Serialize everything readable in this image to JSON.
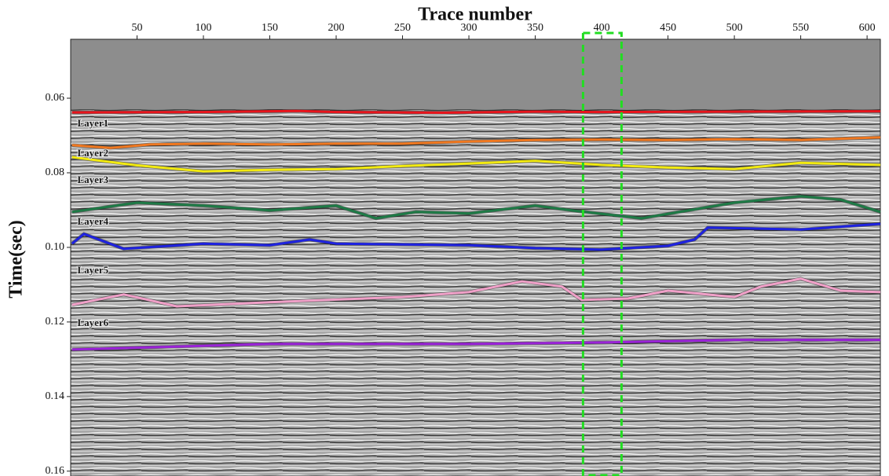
{
  "chart_data": {
    "type": "line",
    "title": "Trace number",
    "y_label": "Time(sec)",
    "xlim": [
      0,
      610
    ],
    "ylim": [
      0.0442,
      0.1613
    ],
    "y_inverted": true,
    "x_axis_position": "top",
    "xticks": [
      50,
      100,
      150,
      200,
      250,
      300,
      350,
      400,
      450,
      500,
      550,
      600
    ],
    "yticks": [
      0.06,
      0.08,
      {
        "value": 0.1,
        "label": "0.10"
      },
      0.12,
      0.14,
      0.16
    ],
    "highlight_x": [
      386,
      415
    ],
    "highlight_color": "#22dd22",
    "series": [
      {
        "color": "#e8141c",
        "x": [
          1,
          100,
          170,
          200,
          280,
          350,
          400,
          500,
          610
        ],
        "values": [
          0.0638,
          0.0637,
          0.0634,
          0.0637,
          0.0639,
          0.0636,
          0.0637,
          0.0636,
          0.0635
        ]
      },
      {
        "color": "#f07820",
        "x": [
          1,
          30,
          60,
          100,
          150,
          200,
          250,
          300,
          350,
          400,
          450,
          500,
          550,
          610
        ],
        "values": [
          0.0726,
          0.0733,
          0.0724,
          0.0722,
          0.0724,
          0.0722,
          0.0722,
          0.0716,
          0.0712,
          0.0711,
          0.0712,
          0.071,
          0.0712,
          0.0705
        ]
      },
      {
        "color": "#f2ea10",
        "x": [
          1,
          50,
          100,
          150,
          200,
          250,
          300,
          350,
          400,
          450,
          500,
          550,
          610
        ],
        "values": [
          0.0758,
          0.078,
          0.0796,
          0.0792,
          0.079,
          0.0782,
          0.0775,
          0.0768,
          0.0779,
          0.0786,
          0.079,
          0.0773,
          0.0779
        ]
      },
      {
        "color": "#1e7a46",
        "x": [
          1,
          50,
          100,
          150,
          200,
          230,
          260,
          300,
          350,
          380,
          430,
          500,
          550,
          580,
          610
        ],
        "values": [
          0.0905,
          0.088,
          0.0888,
          0.0901,
          0.0888,
          0.0922,
          0.0905,
          0.0909,
          0.0888,
          0.0902,
          0.0922,
          0.088,
          0.0863,
          0.0872,
          0.0905
        ]
      },
      {
        "color": "#1e22e0",
        "x": [
          1,
          10,
          40,
          100,
          150,
          180,
          200,
          300,
          350,
          400,
          450,
          470,
          480,
          550,
          610
        ],
        "values": [
          0.099,
          0.0964,
          0.1004,
          0.099,
          0.0994,
          0.0979,
          0.099,
          0.0994,
          0.1002,
          0.1006,
          0.0996,
          0.0979,
          0.0947,
          0.0952,
          0.0937
        ]
      },
      {
        "color": "#f0a0c8",
        "x": [
          1,
          40,
          80,
          150,
          250,
          300,
          340,
          370,
          385,
          420,
          450,
          500,
          520,
          550,
          580,
          610
        ],
        "values": [
          0.1154,
          0.1126,
          0.1158,
          0.1147,
          0.1133,
          0.112,
          0.1091,
          0.1105,
          0.1141,
          0.1137,
          0.1116,
          0.1133,
          0.1105,
          0.1084,
          0.1116,
          0.112
        ]
      },
      {
        "color": "#9a22d8",
        "x": [
          1,
          150,
          300,
          400,
          500,
          610
        ],
        "values": [
          0.1274,
          0.1259,
          0.1259,
          0.1255,
          0.1248,
          0.1248
        ]
      }
    ],
    "annotations": [
      {
        "text": "Layer1",
        "x": 5,
        "y": 0.0669
      },
      {
        "text": "Layer2",
        "x": 5,
        "y": 0.075
      },
      {
        "text": "Layer3",
        "x": 5,
        "y": 0.0821
      },
      {
        "text": "Layer4",
        "x": 5,
        "y": 0.0933
      },
      {
        "text": "Layer5",
        "x": 5,
        "y": 0.1063
      },
      {
        "text": "Layer6",
        "x": 5,
        "y": 0.1204
      }
    ]
  }
}
